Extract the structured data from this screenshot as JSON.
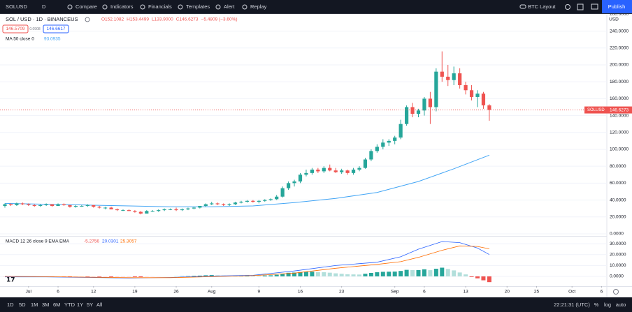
{
  "toolbar": {
    "symbol": "SOLUSD",
    "interval": "D",
    "items": [
      "Compare",
      "Indicators",
      "Financials",
      "Templates",
      "Alert",
      "Replay"
    ],
    "layout": "BTC Layout",
    "publish": "Publish"
  },
  "quote": [
    "146.5709",
    "0.0908",
    "146.6617"
  ],
  "legend": {
    "ohlc_text": [
      "O152.1082",
      "H153.4499",
      "L133.9000",
      "C146.6273"
    ],
    "change": "−5.4809 (−3.60%)"
  },
  "bottom": {
    "ranges": [
      "1D",
      "5D",
      "1M",
      "3M",
      "6M",
      "YTD",
      "1Y",
      "5Y",
      "All"
    ],
    "time": "22:21:31 (UTC)",
    "scale_options": [
      "%",
      "log",
      "auto"
    ]
  },
  "chart_data": {
    "type": "candlestick",
    "title": "SOL / USD · 1D · BINANCEUS",
    "currency": "USD",
    "price_tag": "SOLUSD",
    "colors": {
      "up": "#26a69a",
      "down": "#ef5350"
    },
    "dates": [
      "06-27",
      "06-28",
      "06-29",
      "06-30",
      "07-01",
      "07-02",
      "07-03",
      "07-04",
      "07-05",
      "07-06",
      "07-07",
      "07-08",
      "07-09",
      "07-10",
      "07-11",
      "07-12",
      "07-13",
      "07-14",
      "07-15",
      "07-16",
      "07-17",
      "07-18",
      "07-19",
      "07-20",
      "07-21",
      "07-22",
      "07-23",
      "07-24",
      "07-25",
      "07-26",
      "07-27",
      "07-28",
      "07-29",
      "07-30",
      "07-31",
      "08-01",
      "08-02",
      "08-03",
      "08-04",
      "08-05",
      "08-06",
      "08-07",
      "08-08",
      "08-09",
      "08-10",
      "08-11",
      "08-12",
      "08-13",
      "08-14",
      "08-15",
      "08-16",
      "08-17",
      "08-18",
      "08-19",
      "08-20",
      "08-21",
      "08-22",
      "08-23",
      "08-24",
      "08-25",
      "08-26",
      "08-27",
      "08-28",
      "08-29",
      "08-30",
      "08-31",
      "09-01",
      "09-02",
      "09-03",
      "09-04",
      "09-05",
      "09-06",
      "09-07",
      "09-08",
      "09-09",
      "09-10",
      "09-11",
      "09-12",
      "09-13",
      "09-14",
      "09-15",
      "09-16",
      "09-17"
    ],
    "ohlc": [
      [
        33,
        36,
        31,
        35
      ],
      [
        35,
        36,
        33,
        34
      ],
      [
        34,
        37,
        33,
        36
      ],
      [
        36,
        37,
        34,
        35
      ],
      [
        35,
        36,
        33,
        34
      ],
      [
        34,
        35,
        32,
        33
      ],
      [
        33,
        35,
        32,
        34
      ],
      [
        34,
        36,
        33,
        35
      ],
      [
        35,
        35,
        32,
        33
      ],
      [
        33,
        36,
        33,
        35
      ],
      [
        35,
        36,
        33,
        34
      ],
      [
        34,
        34,
        31,
        32
      ],
      [
        32,
        34,
        31,
        33
      ],
      [
        33,
        34,
        32,
        33
      ],
      [
        33,
        35,
        32,
        34
      ],
      [
        34,
        34,
        31,
        32
      ],
      [
        32,
        33,
        30,
        31
      ],
      [
        31,
        32,
        29,
        31
      ],
      [
        31,
        32,
        29,
        29
      ],
      [
        29,
        30,
        27,
        28
      ],
      [
        28,
        29,
        27,
        28
      ],
      [
        28,
        29,
        27,
        27
      ],
      [
        27,
        28,
        25,
        26
      ],
      [
        26,
        27,
        23,
        24
      ],
      [
        24,
        28,
        24,
        27
      ],
      [
        27,
        28,
        26,
        27
      ],
      [
        27,
        29,
        26,
        28
      ],
      [
        28,
        30,
        27,
        29
      ],
      [
        29,
        30,
        28,
        29
      ],
      [
        29,
        31,
        27,
        28
      ],
      [
        28,
        30,
        27,
        29
      ],
      [
        29,
        31,
        28,
        30
      ],
      [
        30,
        32,
        29,
        31
      ],
      [
        31,
        33,
        30,
        33
      ],
      [
        33,
        36,
        32,
        35
      ],
      [
        35,
        38,
        34,
        36
      ],
      [
        36,
        37,
        34,
        35
      ],
      [
        35,
        36,
        33,
        34
      ],
      [
        34,
        36,
        33,
        35
      ],
      [
        35,
        38,
        34,
        37
      ],
      [
        37,
        39,
        36,
        38
      ],
      [
        38,
        40,
        37,
        39
      ],
      [
        39,
        40,
        37,
        38
      ],
      [
        38,
        40,
        36,
        39
      ],
      [
        39,
        41,
        38,
        40
      ],
      [
        40,
        42,
        39,
        41
      ],
      [
        41,
        46,
        40,
        44
      ],
      [
        44,
        56,
        43,
        54
      ],
      [
        54,
        62,
        52,
        60
      ],
      [
        60,
        64,
        56,
        62
      ],
      [
        62,
        72,
        60,
        70
      ],
      [
        70,
        76,
        68,
        72
      ],
      [
        72,
        78,
        70,
        76
      ],
      [
        76,
        78,
        72,
        74
      ],
      [
        74,
        80,
        72,
        78
      ],
      [
        78,
        82,
        74,
        75
      ],
      [
        75,
        78,
        72,
        73
      ],
      [
        73,
        77,
        71,
        75
      ],
      [
        75,
        76,
        70,
        72
      ],
      [
        72,
        78,
        70,
        76
      ],
      [
        76,
        80,
        74,
        78
      ],
      [
        78,
        90,
        77,
        88
      ],
      [
        88,
        100,
        86,
        98
      ],
      [
        98,
        106,
        96,
        103
      ],
      [
        103,
        112,
        100,
        108
      ],
      [
        108,
        112,
        104,
        110
      ],
      [
        110,
        116,
        106,
        114
      ],
      [
        114,
        135,
        112,
        130
      ],
      [
        130,
        152,
        128,
        150
      ],
      [
        150,
        155,
        138,
        142
      ],
      [
        142,
        148,
        138,
        146
      ],
      [
        146,
        162,
        140,
        160
      ],
      [
        160,
        168,
        130,
        150
      ],
      [
        150,
        196,
        145,
        192
      ],
      [
        192,
        216,
        180,
        186
      ],
      [
        186,
        200,
        175,
        182
      ],
      [
        182,
        198,
        176,
        190
      ],
      [
        190,
        196,
        172,
        176
      ],
      [
        176,
        180,
        165,
        170
      ],
      [
        170,
        176,
        158,
        162
      ],
      [
        162,
        170,
        150,
        166
      ],
      [
        166,
        168,
        148,
        152.1
      ],
      [
        152.1082,
        153.4499,
        133.9,
        146.6273
      ]
    ],
    "ylim": [
      -2.5,
      260.3
    ],
    "yticks": [
      {
        "value": 0,
        "label": "0.0000"
      },
      {
        "value": 20,
        "label": "20.0000"
      },
      {
        "value": 40,
        "label": "40.0000"
      },
      {
        "value": 60,
        "label": "60.0000"
      },
      {
        "value": 80,
        "label": "80.0000"
      },
      {
        "value": 100,
        "label": "100.0000"
      },
      {
        "value": 120,
        "label": "120.0000"
      },
      {
        "value": 140,
        "label": "140.0000"
      },
      {
        "value": 160,
        "label": "160.0000"
      },
      {
        "value": 180,
        "label": "180.0000"
      },
      {
        "value": 200,
        "label": "200.0000"
      },
      {
        "value": 220,
        "label": "220.0000"
      },
      {
        "value": 240,
        "label": "240.0000"
      },
      {
        "value": 260,
        "label": "260.0000"
      }
    ],
    "xticks": [
      {
        "value": "07-01",
        "label": "Jul"
      },
      {
        "value": "07-06",
        "label": "6"
      },
      {
        "value": "07-12",
        "label": "12"
      },
      {
        "value": "07-19",
        "label": "19"
      },
      {
        "value": "07-26",
        "label": "26"
      },
      {
        "value": "08-01",
        "label": "Aug"
      },
      {
        "value": "08-09",
        "label": "9"
      },
      {
        "value": "08-16",
        "label": "16"
      },
      {
        "value": "08-23",
        "label": "23"
      },
      {
        "value": "09-01",
        "label": "Sep"
      },
      {
        "value": "09-06",
        "label": "6"
      },
      {
        "value": "09-13",
        "label": "13"
      },
      {
        "value": "09-20",
        "label": "20"
      },
      {
        "value": "09-25",
        "label": "25"
      },
      {
        "value": "10-01",
        "label": "Oct"
      },
      {
        "value": "10-06",
        "label": "6"
      }
    ],
    "ma": {
      "label": "MA 50 close 0",
      "color": "#42a5f5",
      "x": [
        "06-27",
        "07-04",
        "07-11",
        "07-18",
        "07-25",
        "08-01",
        "08-08",
        "08-15",
        "08-22",
        "08-29",
        "09-05",
        "09-11",
        "09-17"
      ],
      "values": [
        36,
        35,
        34,
        33,
        32,
        32,
        33,
        37,
        42,
        49,
        62,
        77,
        93.0935
      ]
    },
    "macd": {
      "label": "MACD 12 26 close 9 EMA EMA",
      "ylim": [
        -9,
        35.9
      ],
      "yticks": [
        {
          "value": 0,
          "label": "0.0000"
        },
        {
          "value": 10,
          "label": "10.0000"
        },
        {
          "value": 20,
          "label": "20.0000"
        },
        {
          "value": 30,
          "label": "30.0000"
        }
      ],
      "hist_colors": [
        "#26a69a",
        "#b2dfdb",
        "#ffcdd2",
        "#ef5350"
      ],
      "histogram": [
        -0.3,
        -0.4,
        -0.3,
        -0.2,
        -0.2,
        -0.3,
        -0.2,
        -0.1,
        -0.2,
        -0.1,
        -0.2,
        -0.3,
        -0.3,
        -0.3,
        -0.4,
        -0.4,
        -0.5,
        -0.5,
        -0.6,
        -0.6,
        -0.5,
        -0.5,
        -0.6,
        -0.7,
        -0.4,
        -0.3,
        -0.2,
        -0.1,
        0,
        0.1,
        0.2,
        0.3,
        0.5,
        0.7,
        1,
        1.2,
        1,
        0.8,
        0.7,
        0.8,
        0.9,
        1,
        0.9,
        0.8,
        0.8,
        1,
        1.5,
        2.5,
        3.3,
        3.5,
        4,
        4.2,
        4.3,
        3.9,
        3.8,
        3.4,
        2.8,
        2.4,
        1.9,
        1.8,
        1.7,
        2.4,
        3.2,
        3.8,
        4.2,
        4.3,
        4.4,
        5,
        6,
        5.8,
        5.8,
        6.5,
        5.7,
        7,
        8,
        6.8,
        5.5,
        3.6,
        1.8,
        -0.6,
        -1.8,
        -3.6,
        -5.2756
      ],
      "macd": {
        "color": "#2962ff",
        "x": [
          "06-27",
          "07-04",
          "07-11",
          "07-18",
          "07-25",
          "08-01",
          "08-08",
          "08-15",
          "08-22",
          "08-29",
          "09-02",
          "09-05",
          "09-09",
          "09-12",
          "09-15",
          "09-17"
        ],
        "values": [
          -0.5,
          -0.5,
          -1,
          -1.5,
          -1,
          0.3,
          1,
          5,
          10,
          13,
          18,
          25,
          32,
          31,
          26,
          20.0301
        ]
      },
      "signal": {
        "color": "#ff6d00",
        "x": [
          "06-27",
          "07-04",
          "07-11",
          "07-18",
          "07-25",
          "08-01",
          "08-08",
          "08-15",
          "08-22",
          "08-29",
          "09-02",
          "09-05",
          "09-09",
          "09-12",
          "09-15",
          "09-17"
        ],
        "values": [
          0,
          -0.3,
          -0.7,
          -1.2,
          -1.2,
          -0.3,
          0.7,
          3,
          7.5,
          11,
          13.5,
          17.5,
          24,
          28,
          27.5,
          25.3057
        ]
      }
    }
  }
}
